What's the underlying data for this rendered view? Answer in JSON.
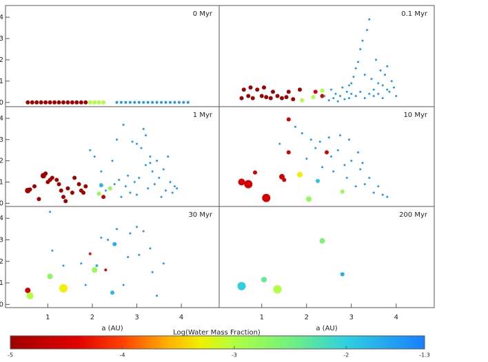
{
  "chart_data": [
    {
      "type": "scatter",
      "title": "0 Myr",
      "xlim": [
        0.05,
        4.85
      ],
      "ylim": [
        -0.2,
        4.55
      ],
      "yticks": [
        0,
        1,
        2,
        3,
        4
      ],
      "x": [
        0.55,
        0.65,
        0.75,
        0.85,
        0.95,
        1.05,
        1.15,
        1.25,
        1.35,
        1.45,
        1.55,
        1.65,
        1.75,
        1.85,
        1.95,
        2.05,
        2.15,
        2.25,
        2.55,
        2.65,
        2.75,
        2.85,
        2.95,
        3.05,
        3.15,
        3.25,
        3.35,
        3.45,
        3.55,
        3.65,
        3.75,
        3.85,
        3.95,
        4.05,
        4.15
      ],
      "y": [
        0,
        0,
        0,
        0,
        0,
        0,
        0,
        0,
        0,
        0,
        0,
        0,
        0,
        0,
        0,
        0,
        0,
        0,
        0,
        0,
        0,
        0,
        0,
        0,
        0,
        0,
        0,
        0,
        0,
        0,
        0,
        0,
        0,
        0,
        0
      ],
      "w": [
        -5,
        -5,
        -5,
        -5,
        -5,
        -5,
        -5,
        -5,
        -5,
        -5,
        -5,
        -5,
        -5,
        -5,
        -3,
        -3,
        -3,
        -3,
        -1.5,
        -1.5,
        -1.5,
        -1.5,
        -1.5,
        -1.5,
        -1.5,
        -1.5,
        -1.5,
        -1.5,
        -1.5,
        -1.5,
        -1.5,
        -1.5,
        -1.5,
        -1.5,
        -1.5
      ],
      "m": [
        3,
        3,
        3,
        3,
        3,
        3,
        3,
        3,
        3,
        3,
        3,
        3,
        3,
        3,
        3,
        3,
        3,
        3,
        2,
        2,
        2,
        2,
        2,
        2,
        2,
        2,
        2,
        2,
        2,
        2,
        2,
        2,
        2,
        2,
        2
      ]
    },
    {
      "type": "scatter",
      "title": "0.1 Myr",
      "xlim": [
        0.05,
        4.85
      ],
      "ylim": [
        -0.2,
        4.55
      ],
      "x": [
        0.55,
        0.6,
        0.7,
        0.75,
        0.8,
        0.9,
        1.0,
        1.05,
        1.1,
        1.2,
        1.25,
        1.35,
        1.45,
        1.55,
        1.6,
        1.7,
        1.85,
        2.2,
        2.35,
        1.9,
        2.15,
        2.35,
        2.4,
        2.5,
        2.55,
        2.6,
        2.65,
        2.7,
        2.75,
        2.8,
        2.85,
        2.9,
        2.95,
        3.0,
        3.05,
        3.1,
        3.15,
        3.2,
        3.25,
        3.3,
        3.35,
        3.4,
        3.45,
        3.5,
        3.55,
        3.6,
        3.65,
        3.7,
        3.75,
        3.8,
        3.85,
        3.9,
        3.95,
        4.0,
        3.1,
        3.2,
        3.3,
        3.4,
        3.5,
        2.95,
        3.0,
        3.6,
        3.7,
        3.8
      ],
      "y": [
        0.2,
        0.6,
        0.3,
        0.7,
        0.2,
        0.6,
        0.3,
        0.7,
        0.25,
        0.2,
        0.5,
        0.3,
        0.2,
        0.25,
        0.5,
        0.15,
        0.6,
        0.5,
        0.3,
        0.1,
        0.25,
        0.55,
        0.3,
        0.1,
        0.6,
        0.2,
        0.4,
        0.05,
        0.3,
        0.7,
        0.15,
        0.5,
        0.2,
        0.9,
        1.2,
        1.6,
        1.9,
        2.5,
        2.9,
        1.3,
        3.4,
        3.9,
        1.1,
        0.6,
        2.0,
        0.4,
        1.5,
        0.8,
        1.3,
        1.7,
        0.5,
        1.0,
        0.7,
        0.3,
        0.3,
        0.5,
        0.2,
        0.4,
        0.3,
        0.8,
        0.4,
        0.9,
        0.2,
        0.6
      ],
      "w": [
        -5,
        -5,
        -5,
        -5,
        -5,
        -5,
        -5,
        -5,
        -5,
        -5,
        -5,
        -5,
        -5,
        -5,
        -5,
        -5,
        -5,
        -4.5,
        -4.5,
        -3,
        -3,
        -3,
        -1.5,
        -1.5,
        -1.5,
        -1.5,
        -1.5,
        -1.5,
        -1.5,
        -1.5,
        -1.5,
        -1.5,
        -1.5,
        -1.5,
        -1.5,
        -1.5,
        -1.5,
        -1.5,
        -1.5,
        -1.5,
        -1.5,
        -1.5,
        -1.5,
        -1.5,
        -1.5,
        -1.5,
        -1.5,
        -1.5,
        -1.5,
        -1.5,
        -1.5,
        -1.5,
        -1.5,
        -1.5,
        -1.5,
        -1.5,
        -1.5,
        -1.5,
        -1.5,
        -1.5,
        -1.5,
        -1.5,
        -1.5,
        -1.5
      ],
      "m": [
        3,
        3,
        3,
        3,
        3,
        3,
        3,
        3,
        3,
        3,
        3,
        3,
        3,
        3,
        3,
        3,
        3,
        3,
        3,
        3,
        3,
        3,
        1.5,
        1.5,
        1.5,
        1.5,
        1.5,
        1.5,
        1.5,
        1.5,
        1.5,
        1.5,
        1.5,
        1.5,
        1.5,
        1.5,
        1.5,
        1.5,
        1.5,
        1.5,
        1.5,
        1.5,
        1.5,
        1.5,
        1.5,
        1.5,
        1.5,
        1.5,
        1.5,
        1.5,
        1.5,
        1.5,
        1.5,
        1.5,
        1.5,
        1.5,
        1.5,
        1.5,
        1.5,
        1.5,
        1.5,
        1.5,
        1.5,
        1.5
      ]
    },
    {
      "type": "scatter",
      "title": "1 Myr",
      "xlim": [
        0.05,
        4.85
      ],
      "ylim": [
        -0.15,
        4.55
      ],
      "yticks": [
        0,
        1,
        2,
        3,
        4
      ],
      "x": [
        0.55,
        0.6,
        0.7,
        0.8,
        0.9,
        0.95,
        1.0,
        1.05,
        1.1,
        1.2,
        1.25,
        1.3,
        1.35,
        1.4,
        1.45,
        1.55,
        1.6,
        1.7,
        1.75,
        1.8,
        1.85,
        2.25,
        2.2,
        2.15,
        2.4,
        1.95,
        2.05,
        2.2,
        2.3,
        2.45,
        2.5,
        2.6,
        2.65,
        2.7,
        2.75,
        2.8,
        2.85,
        2.9,
        2.95,
        3.0,
        3.05,
        3.1,
        3.15,
        3.2,
        3.25,
        3.3,
        3.35,
        3.4,
        3.45,
        3.5,
        3.55,
        3.6,
        3.65,
        3.7,
        3.75,
        3.8,
        3.85,
        3.9,
        2.55,
        3.0,
        3.2,
        3.3
      ],
      "y": [
        0.6,
        0.65,
        0.8,
        0.2,
        1.3,
        1.4,
        1.0,
        1.1,
        1.2,
        1.1,
        0.9,
        0.6,
        0.3,
        0.1,
        0.7,
        0.5,
        1.2,
        0.9,
        0.6,
        0.5,
        0.8,
        0.3,
        0.85,
        0.45,
        0.7,
        2.5,
        2.2,
        1.5,
        0.6,
        2.0,
        0.9,
        1.1,
        0.3,
        3.7,
        0.8,
        1.3,
        0.5,
        2.9,
        1.0,
        0.4,
        1.2,
        2.6,
        3.5,
        1.8,
        0.7,
        2.2,
        1.5,
        0.9,
        2.0,
        1.2,
        0.3,
        1.6,
        0.6,
        2.2,
        1.0,
        0.5,
        0.8,
        0.7,
        3.0,
        2.8,
        3.2,
        1.9
      ],
      "w": [
        -5,
        -5,
        -5,
        -5,
        -5,
        -5,
        -5,
        -5,
        -5,
        -5,
        -5,
        -5,
        -5,
        -5,
        -5,
        -5,
        -5,
        -5,
        -5,
        -5,
        -5,
        -4.6,
        -1.8,
        -2.8,
        -2.8,
        -1.5,
        -1.5,
        -1.5,
        -1.5,
        -1.5,
        -1.5,
        -1.5,
        -1.5,
        -1.5,
        -1.5,
        -1.5,
        -1.5,
        -1.5,
        -1.5,
        -1.5,
        -1.5,
        -1.5,
        -1.5,
        -1.5,
        -1.5,
        -1.5,
        -1.5,
        -1.5,
        -1.5,
        -1.5,
        -1.5,
        -1.5,
        -1.5,
        -1.5,
        -1.5,
        -1.5,
        -1.5,
        -1.5,
        -1.5,
        -1.5,
        -1.5,
        -1.5
      ],
      "m": [
        4,
        3,
        3,
        3,
        4,
        3,
        3,
        3,
        3,
        3,
        3,
        3,
        3,
        3,
        3,
        3,
        3,
        3,
        3,
        3,
        3,
        3,
        3,
        3,
        3,
        1.5,
        1.5,
        1.5,
        1.5,
        1.5,
        1.5,
        1.5,
        1.5,
        1.5,
        1.5,
        1.5,
        1.5,
        1.5,
        1.5,
        1.5,
        1.5,
        1.5,
        1.5,
        1.5,
        1.5,
        1.5,
        1.5,
        1.5,
        1.5,
        1.5,
        1.5,
        1.5,
        1.5,
        1.5,
        1.5,
        1.5,
        1.5,
        1.5,
        1.5,
        1.5,
        1.5,
        1.5
      ]
    },
    {
      "type": "scatter",
      "title": "10 Myr",
      "xlim": [
        0.05,
        4.85
      ],
      "ylim": [
        -0.15,
        4.55
      ],
      "x": [
        0.55,
        0.7,
        1.1,
        0.85,
        1.45,
        1.5,
        1.6,
        1.6,
        2.45,
        1.85,
        2.05,
        2.8,
        2.25,
        1.4,
        1.75,
        1.9,
        2.0,
        2.1,
        2.2,
        2.35,
        2.5,
        2.55,
        2.6,
        2.7,
        2.75,
        2.85,
        2.9,
        3.0,
        3.1,
        3.15,
        3.2,
        3.3,
        3.4,
        3.5,
        3.6,
        3.7,
        3.8,
        2.3,
        2.95,
        3.25
      ],
      "y": [
        1.0,
        0.9,
        0.25,
        1.45,
        1.25,
        1.1,
        3.95,
        2.4,
        2.4,
        1.35,
        0.2,
        0.55,
        1.05,
        2.8,
        3.6,
        3.3,
        2.1,
        3.0,
        2.6,
        1.7,
        3.1,
        2.2,
        1.5,
        2.5,
        3.2,
        1.8,
        1.2,
        2.0,
        0.8,
        2.4,
        1.6,
        0.9,
        1.2,
        0.5,
        0.8,
        0.4,
        0.3,
        2.9,
        3.0,
        1.9
      ],
      "w": [
        -4.5,
        -4.5,
        -4.5,
        -4.5,
        -4.5,
        -4.5,
        -4.5,
        -4.5,
        -4.5,
        -3.3,
        -2.8,
        -2.8,
        -1.9,
        -1.5,
        -1.5,
        -1.5,
        -1.5,
        -1.5,
        -1.5,
        -1.5,
        -1.5,
        -1.5,
        -1.5,
        -1.5,
        -1.5,
        -1.5,
        -1.5,
        -1.5,
        -1.5,
        -1.5,
        -1.5,
        -1.5,
        -1.5,
        -1.5,
        -1.5,
        -1.5,
        -1.5,
        -1.5,
        -1.5,
        -1.5
      ],
      "m": [
        5,
        6,
        6,
        3,
        4,
        3,
        3,
        3,
        3,
        4,
        4,
        3,
        3,
        1.5,
        1.5,
        1.5,
        1.5,
        1.5,
        1.5,
        1.5,
        1.5,
        1.5,
        1.5,
        1.5,
        1.5,
        1.5,
        1.5,
        1.5,
        1.5,
        1.5,
        1.5,
        1.5,
        1.5,
        1.5,
        1.5,
        1.5,
        1.5,
        1.5,
        1.5,
        1.5
      ]
    },
    {
      "type": "scatter",
      "title": "30 Myr",
      "xlim": [
        0.05,
        4.85
      ],
      "ylim": [
        -0.15,
        4.55
      ],
      "yticks": [
        0,
        1,
        2,
        3,
        4
      ],
      "xticks": [
        1,
        2,
        3,
        4
      ],
      "xlabel": "a (AU)",
      "x": [
        0.55,
        0.6,
        1.05,
        2.05,
        1.35,
        1.95,
        2.3,
        2.5,
        2.45,
        2.1,
        1.05,
        1.1,
        1.35,
        1.75,
        1.85,
        2.2,
        2.35,
        2.55,
        2.7,
        2.85,
        3.0,
        3.05,
        3.15,
        3.3,
        3.45,
        3.6,
        2.8,
        3.35
      ],
      "y": [
        0.65,
        0.4,
        1.3,
        1.6,
        0.75,
        2.35,
        1.6,
        2.8,
        0.55,
        1.8,
        4.3,
        2.5,
        1.8,
        1.9,
        0.9,
        3.1,
        3.0,
        3.5,
        0.9,
        3.3,
        3.6,
        2.3,
        3.4,
        2.6,
        0.4,
        1.9,
        2.2,
        1.5
      ],
      "w": [
        -4.5,
        -3,
        -2.7,
        -2.8,
        -3.3,
        -4.3,
        -4.5,
        -1.7,
        -1.8,
        -1.8,
        -1.5,
        -1.5,
        -1.5,
        -1.5,
        -1.5,
        -1.5,
        -1.5,
        -1.5,
        -1.5,
        -1.5,
        -1.5,
        -1.5,
        -1.5,
        -1.5,
        -1.5,
        -1.5,
        -1.5,
        -1.5
      ],
      "m": [
        4,
        5,
        4,
        4,
        6,
        2,
        2,
        3,
        3,
        2,
        1.5,
        1.5,
        1.5,
        1.5,
        1.5,
        1.5,
        1.5,
        1.5,
        1.5,
        1.5,
        1.5,
        1.5,
        1.5,
        1.5,
        1.5,
        1.5,
        1.5,
        1.5
      ]
    },
    {
      "type": "scatter",
      "title": "200 Myr",
      "xlim": [
        0.05,
        4.85
      ],
      "ylim": [
        -0.15,
        4.55
      ],
      "xticks": [
        1,
        2,
        3,
        4
      ],
      "xlabel": "a (AU)",
      "x": [
        0.55,
        1.05,
        1.35,
        2.35,
        2.8
      ],
      "y": [
        0.85,
        1.15,
        0.7,
        2.95,
        1.4
      ],
      "w": [
        -2,
        -2.4,
        -3,
        -2.6,
        -1.7
      ],
      "m": [
        6,
        4,
        6,
        4,
        3
      ]
    },
    {
      "type": "colorbar",
      "title": "Log(Water Mass Fraction)",
      "lim": [
        -5,
        -1.3
      ],
      "ticks": [
        -5,
        -4,
        -3,
        -2,
        -1.3
      ]
    }
  ]
}
